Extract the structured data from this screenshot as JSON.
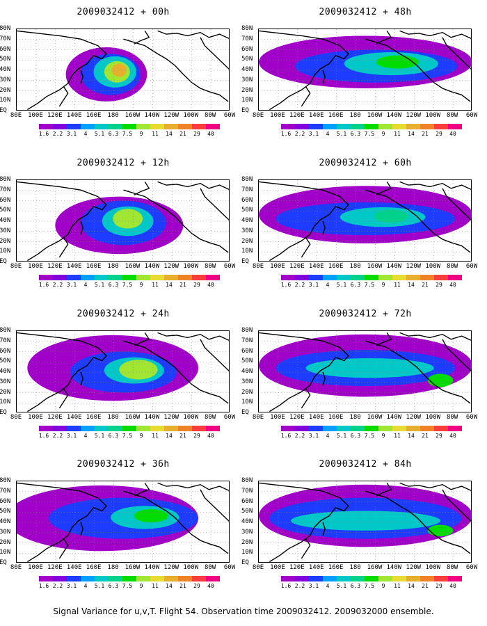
{
  "caption": "Signal Variance for u,v,T. Flight 54. Observation time 2009032412. 2009032000 ensemble.",
  "lat_labels": [
    "80N",
    "70N",
    "60N",
    "50N",
    "40N",
    "30N",
    "20N",
    "10N",
    "EQ"
  ],
  "lon_labels": [
    "80E",
    "100E",
    "120E",
    "140E",
    "160E",
    "180",
    "160W",
    "140W",
    "120W",
    "100W",
    "80W",
    "60W"
  ],
  "colorbar": {
    "levels": [
      "1.6",
      "2.2",
      "3.1",
      "4",
      "5.1",
      "6.3",
      "7.5",
      "9",
      "11",
      "14",
      "21",
      "29",
      "40"
    ],
    "colors": [
      "#a000c8",
      "#8200dc",
      "#1e3cff",
      "#00a0ff",
      "#00c8c8",
      "#00d28c",
      "#00dc00",
      "#a0e632",
      "#e6dc32",
      "#e6af2d",
      "#f08228",
      "#fa3c3c",
      "#f00082"
    ]
  },
  "panels": [
    {
      "title": "2009032412 + 00h"
    },
    {
      "title": "2009032412 + 48h"
    },
    {
      "title": "2009032412 + 12h"
    },
    {
      "title": "2009032412 + 60h"
    },
    {
      "title": "2009032412 + 24h"
    },
    {
      "title": "2009032412 + 72h"
    },
    {
      "title": "2009032412 + 36h"
    },
    {
      "title": "2009032412 + 84h"
    }
  ]
}
